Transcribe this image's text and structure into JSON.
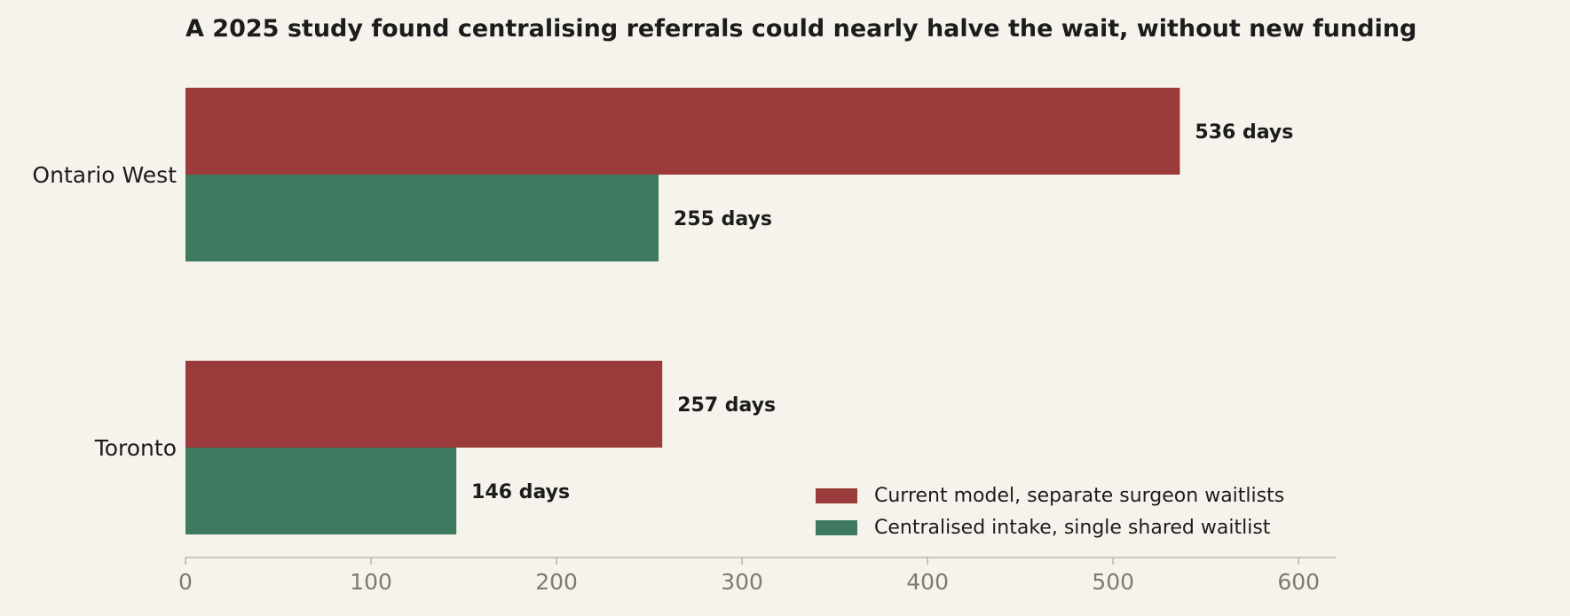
{
  "chart_data": {
    "type": "bar",
    "orientation": "horizontal",
    "title": "A 2025 study found centralising referrals could nearly halve the wait, without new funding",
    "categories": [
      "Ontario West",
      "Toronto"
    ],
    "series": [
      {
        "name": "Current model, separate surgeon waitlists",
        "values": [
          536,
          257
        ],
        "color": "#9b3a3a"
      },
      {
        "name": "Centralised intake, single shared waitlist",
        "values": [
          255,
          146
        ],
        "color": "#3d7a5f"
      }
    ],
    "value_suffix": " days",
    "xlim": [
      0,
      620
    ],
    "xticks": [
      0,
      100,
      200,
      300,
      400,
      500,
      600
    ],
    "xlabel": "",
    "ylabel": "",
    "grid": false,
    "legend_position": "bottom-right"
  }
}
